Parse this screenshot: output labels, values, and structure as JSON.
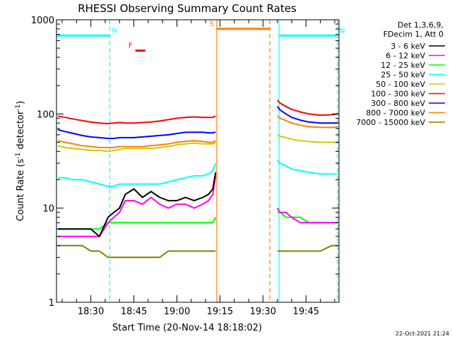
{
  "chart_data": {
    "type": "line",
    "title": "RHESSI Observing Summary Count Rates",
    "xlabel": "Start Time (20-Nov-14 18:18:02)",
    "ylabel_main": "Count Rate (s",
    "ylabel_sup1": "-1",
    "ylabel_mid": " detector",
    "ylabel_sup2": "-1",
    "ylabel_end": ")",
    "yscale": "log",
    "ylim": [
      1,
      1000
    ],
    "y_ticks": [
      {
        "value": 1,
        "label": "1"
      },
      {
        "value": 10,
        "label": "10"
      },
      {
        "value": 100,
        "label": "100"
      },
      {
        "value": 1000,
        "label": "1000"
      }
    ],
    "x_start_min": 1098.03,
    "xlim_min": [
      1098.03,
      1196.5
    ],
    "x_ticks": [
      {
        "value": 1110,
        "label": "18:30"
      },
      {
        "value": 1125,
        "label": "18:45"
      },
      {
        "value": 1140,
        "label": "19:00"
      },
      {
        "value": 1155,
        "label": "19:15"
      },
      {
        "value": 1170,
        "label": "19:30"
      },
      {
        "value": 1185,
        "label": "19:45"
      }
    ],
    "legend": {
      "header": [
        "Det 1,3,6,9,",
        "FDecim 1, Att 0"
      ],
      "position": "right",
      "entries": [
        {
          "label": "3 - 6 keV",
          "color": "#000000"
        },
        {
          "label": "6 - 12 keV",
          "color": "#ff00ff"
        },
        {
          "label": "12 - 25 keV",
          "color": "#00ff00"
        },
        {
          "label": "25 - 50 keV",
          "color": "#00ffff"
        },
        {
          "label": "50 - 100 keV",
          "color": "#d4c800"
        },
        {
          "label": "100 - 300 keV",
          "color": "#ff0000"
        },
        {
          "label": "300 - 800 keV",
          "color": "#0000ff"
        },
        {
          "label": "800 - 7000 keV",
          "color": "#ff8000"
        },
        {
          "label": "7000 - 15000 keV",
          "color": "#808000"
        }
      ]
    },
    "flags": [
      {
        "label": "N",
        "color": "#00ffff",
        "start": 1098.03,
        "end": 1116.6,
        "y": 680
      },
      {
        "label": "N",
        "color": "#00ffff",
        "start": 1175.6,
        "end": 1196.0,
        "y": 680
      },
      {
        "label": "S",
        "color": "#ff8000",
        "start": 1153.9,
        "end": 1172.4,
        "y": 800
      },
      {
        "label": "F",
        "color": "#ff0000",
        "start": 1125.5,
        "end": 1129.0,
        "y": 470
      }
    ],
    "vlines": [
      {
        "x": 1098.03,
        "color": "#00ffff",
        "style": "solid"
      },
      {
        "x": 1116.6,
        "color": "#00ffff",
        "style": "dashed"
      },
      {
        "x": 1153.9,
        "color": "#ff8000",
        "style": "solid"
      },
      {
        "x": 1172.4,
        "color": "#ff8000",
        "style": "dashed"
      },
      {
        "x": 1175.6,
        "color": "#00ffff",
        "style": "solid"
      },
      {
        "x": 1196.0,
        "color": "#00ffff",
        "style": "dashed"
      }
    ],
    "series": [
      {
        "name": "3 - 6 keV",
        "color": "#000000",
        "x": [
          1098.5,
          1101,
          1104,
          1107,
          1110,
          1113,
          1116,
          1118,
          1120,
          1122,
          1125,
          1128,
          1131,
          1134,
          1137,
          1140,
          1143,
          1146,
          1149,
          1151,
          1152.5,
          1153.5
        ],
        "y": [
          6,
          6,
          6,
          6,
          6,
          5,
          8,
          9,
          10,
          14,
          16,
          13,
          15,
          13,
          12,
          12,
          13,
          12,
          13,
          14,
          16,
          24
        ]
      },
      {
        "name": "6 - 12 keV",
        "color": "#ff00ff",
        "x": [
          1098.5,
          1101,
          1104,
          1107,
          1110,
          1113,
          1116,
          1118,
          1120,
          1122,
          1125,
          1128,
          1131,
          1134,
          1137,
          1140,
          1143,
          1146,
          1149,
          1151,
          1152.5,
          1153.5,
          1175,
          1176,
          1178,
          1180,
          1183,
          1186,
          1190,
          1194,
          1196
        ],
        "y": [
          5,
          5,
          5,
          5,
          5,
          5,
          7,
          8,
          9,
          12,
          12,
          11,
          13,
          11,
          10,
          11,
          11,
          10,
          11,
          12,
          14,
          22,
          10,
          9,
          9,
          8,
          7,
          7,
          7,
          7,
          7
        ]
      },
      {
        "name": "12 - 25 keV",
        "color": "#00ff00",
        "x": [
          1098.5,
          1101,
          1104,
          1107,
          1110,
          1113,
          1116,
          1118,
          1120,
          1122,
          1125,
          1128,
          1131,
          1134,
          1137,
          1140,
          1143,
          1146,
          1149,
          1151,
          1152.5,
          1153.5,
          1175,
          1176,
          1178,
          1180,
          1183,
          1186,
          1190,
          1194,
          1196
        ],
        "y": [
          6,
          6,
          6,
          6,
          6,
          6,
          7,
          7,
          7,
          7,
          7,
          7,
          7,
          7,
          7,
          7,
          7,
          7,
          7,
          7,
          7,
          8,
          9,
          9,
          8,
          8,
          8,
          7,
          7,
          7,
          7
        ]
      },
      {
        "name": "25 - 50 keV",
        "color": "#00ffff",
        "x": [
          1098.5,
          1101,
          1104,
          1107,
          1110,
          1113,
          1116,
          1118,
          1120,
          1122,
          1125,
          1128,
          1131,
          1134,
          1137,
          1140,
          1143,
          1146,
          1149,
          1151,
          1152.5,
          1153.5,
          1175,
          1176,
          1178,
          1180,
          1183,
          1186,
          1190,
          1194,
          1196
        ],
        "y": [
          21,
          21,
          20,
          20,
          19,
          18,
          17,
          17,
          18,
          18,
          18,
          18,
          18,
          18,
          19,
          20,
          21,
          22,
          22,
          23,
          25,
          30,
          32,
          30,
          28,
          26,
          25,
          24,
          23,
          23,
          23
        ]
      },
      {
        "name": "50 - 100 keV",
        "color": "#d4c800",
        "x": [
          1098.5,
          1101,
          1104,
          1107,
          1110,
          1113,
          1116,
          1118,
          1120,
          1122,
          1125,
          1128,
          1131,
          1134,
          1137,
          1140,
          1143,
          1146,
          1149,
          1151,
          1152.5,
          1153.5,
          1175,
          1176,
          1178,
          1180,
          1183,
          1186,
          1190,
          1194,
          1196
        ],
        "y": [
          46,
          44,
          43,
          42,
          41,
          41,
          40,
          41,
          42,
          43,
          43,
          43,
          43,
          44,
          45,
          47,
          48,
          49,
          48,
          48,
          48,
          50,
          60,
          58,
          56,
          54,
          52,
          51,
          50,
          50,
          50
        ]
      },
      {
        "name": "100 - 300 keV",
        "color": "#ff0000",
        "x": [
          1098.5,
          1101,
          1104,
          1107,
          1110,
          1113,
          1116,
          1118,
          1120,
          1122,
          1125,
          1128,
          1131,
          1134,
          1137,
          1140,
          1143,
          1146,
          1149,
          1151,
          1152.5,
          1153.5,
          1175,
          1176,
          1178,
          1180,
          1183,
          1186,
          1190,
          1194,
          1196
        ],
        "y": [
          95,
          92,
          88,
          85,
          82,
          80,
          79,
          80,
          81,
          80,
          80,
          81,
          82,
          84,
          87,
          90,
          92,
          93,
          92,
          92,
          92,
          95,
          140,
          130,
          120,
          112,
          105,
          100,
          97,
          98,
          100
        ]
      },
      {
        "name": "300 - 800 keV",
        "color": "#0000ff",
        "x": [
          1098.5,
          1101,
          1104,
          1107,
          1110,
          1113,
          1116,
          1118,
          1120,
          1122,
          1125,
          1128,
          1131,
          1134,
          1137,
          1140,
          1143,
          1146,
          1149,
          1151,
          1152.5,
          1153.5,
          1175,
          1176,
          1178,
          1180,
          1183,
          1186,
          1190,
          1194,
          1196
        ],
        "y": [
          68,
          65,
          62,
          59,
          57,
          56,
          55,
          55,
          56,
          56,
          56,
          57,
          58,
          59,
          60,
          62,
          64,
          64,
          64,
          63,
          63,
          64,
          120,
          110,
          100,
          92,
          86,
          82,
          80,
          80,
          80
        ]
      },
      {
        "name": "800 - 7000 keV",
        "color": "#ff8000",
        "x": [
          1098.5,
          1101,
          1104,
          1107,
          1110,
          1113,
          1116,
          1118,
          1120,
          1122,
          1125,
          1128,
          1131,
          1134,
          1137,
          1140,
          1143,
          1146,
          1149,
          1151,
          1152.5,
          1153.5,
          1175,
          1176,
          1178,
          1180,
          1183,
          1186,
          1190,
          1194,
          1196
        ],
        "y": [
          52,
          50,
          48,
          46,
          45,
          44,
          44,
          44,
          45,
          45,
          45,
          45,
          46,
          47,
          48,
          50,
          51,
          52,
          51,
          50,
          50,
          52,
          95,
          90,
          85,
          80,
          76,
          73,
          72,
          72,
          73
        ]
      },
      {
        "name": "7000 - 15000 keV",
        "color": "#808000",
        "x": [
          1098.5,
          1101,
          1104,
          1107,
          1110,
          1113,
          1116,
          1118,
          1120,
          1122,
          1125,
          1128,
          1131,
          1134,
          1137,
          1140,
          1143,
          1146,
          1149,
          1151,
          1152.5,
          1153.5,
          1175,
          1176,
          1178,
          1180,
          1183,
          1186,
          1190,
          1194,
          1196
        ],
        "y": [
          4,
          4,
          4,
          4,
          3.5,
          3.5,
          3,
          3,
          3,
          3,
          3,
          3,
          3,
          3,
          3.5,
          3.5,
          3.5,
          3.5,
          3.5,
          3.5,
          3.5,
          3.5,
          3.5,
          3.5,
          3.5,
          3.5,
          3.5,
          3.5,
          3.5,
          4,
          4
        ]
      }
    ],
    "grid": false
  },
  "footer_timestamp": "22-Oct-2021 21:24"
}
